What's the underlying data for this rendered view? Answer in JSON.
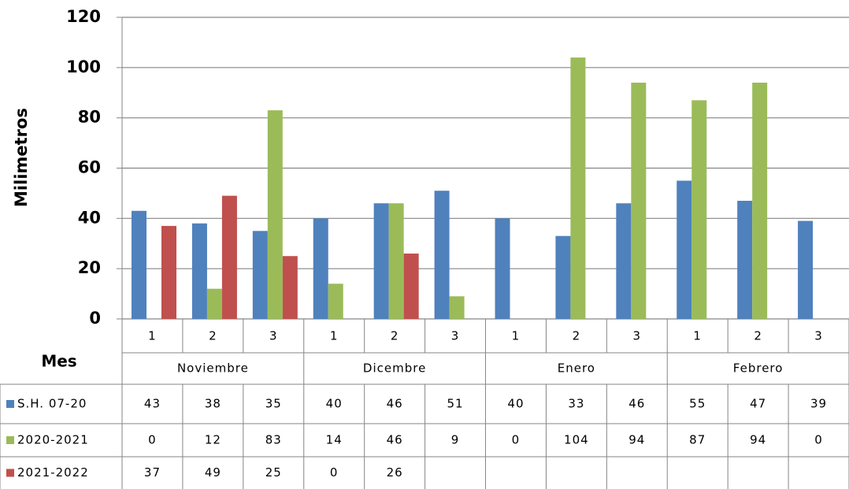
{
  "chart_data": {
    "type": "bar",
    "y_label": "Milimetros",
    "x_label": "Mes",
    "groups": [
      {
        "name": "Noviembre",
        "categories": [
          "1",
          "2",
          "3"
        ]
      },
      {
        "name": "Dicembre",
        "categories": [
          "1",
          "2",
          "3"
        ]
      },
      {
        "name": "Enero",
        "categories": [
          "1",
          "2",
          "3"
        ]
      },
      {
        "name": "Febrero",
        "categories": [
          "1",
          "2",
          "3"
        ]
      }
    ],
    "series": [
      {
        "name": "S.H. 07-20",
        "color": "#4f81bd",
        "values": [
          43,
          38,
          35,
          40,
          46,
          51,
          40,
          33,
          46,
          55,
          47,
          39
        ]
      },
      {
        "name": "2020-2021",
        "color": "#9bbb59",
        "values": [
          0,
          12,
          83,
          14,
          46,
          9,
          0,
          104,
          94,
          87,
          94,
          0
        ]
      },
      {
        "name": "2021-2022",
        "color": "#c0504d",
        "values": [
          37,
          49,
          25,
          0,
          26,
          null,
          null,
          null,
          null,
          null,
          null,
          null
        ]
      }
    ],
    "ylim": [
      0,
      120
    ],
    "yticks": [
      0,
      20,
      40,
      60,
      80,
      100,
      120
    ],
    "grid": true
  }
}
